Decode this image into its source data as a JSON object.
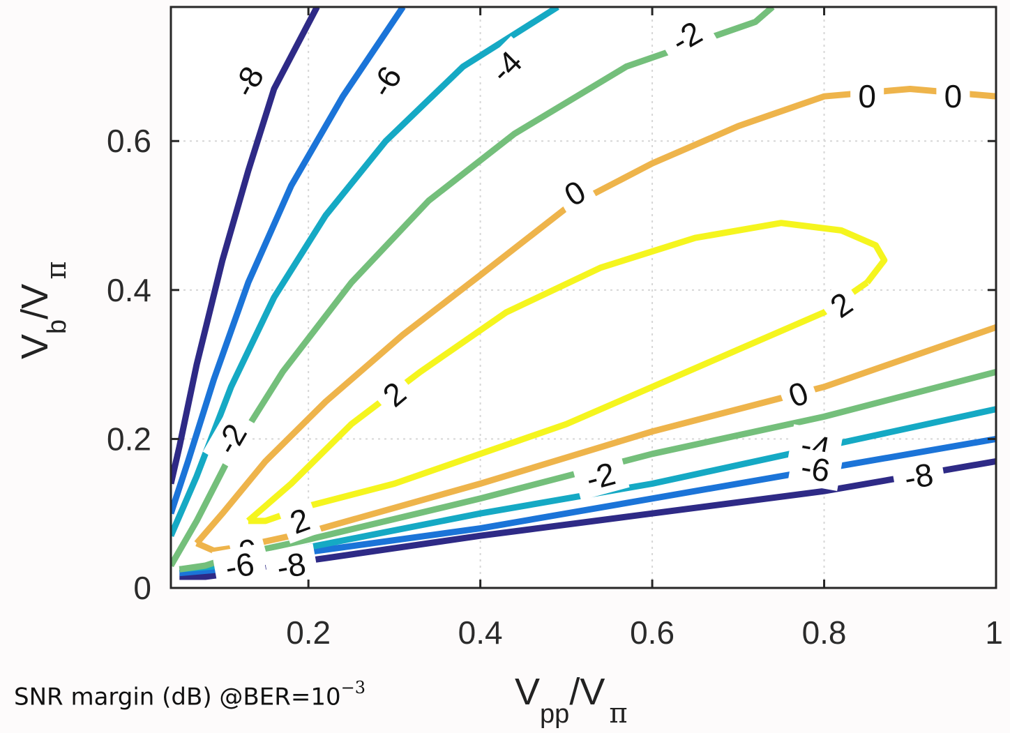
{
  "caption": {
    "prefix": "SNR margin (dB) @BER=10",
    "exponent": "−3"
  },
  "chart_data": {
    "type": "contour",
    "title": "",
    "xlabel": {
      "main": "V",
      "sub": "pp",
      "sep": "/V",
      "pi": "π"
    },
    "ylabel": {
      "main": "V",
      "sub": "b",
      "sep": "/V",
      "pi": "π"
    },
    "xlim": [
      0.04,
      1.0
    ],
    "ylim": [
      0.0,
      0.78
    ],
    "xticks": [
      0.2,
      0.4,
      0.6,
      0.8,
      1.0
    ],
    "xtick_labels": [
      "0.2",
      "0.4",
      "0.6",
      "0.8",
      "1"
    ],
    "yticks": [
      0.0,
      0.2,
      0.4,
      0.6
    ],
    "ytick_labels": [
      "0",
      "0.2",
      "0.4",
      "0.6"
    ],
    "grid": true,
    "colors": {
      "-8": "#2e2a86",
      "-6": "#1b74d8",
      "-4": "#15a9c4",
      "-2": "#74bf7b",
      "0": "#eeb44b",
      "2": "#f5f51e"
    },
    "contours": [
      {
        "level": -8,
        "segments": [
          [
            [
              0.04,
              0.14
            ],
            [
              0.05,
              0.19
            ],
            [
              0.07,
              0.3
            ],
            [
              0.1,
              0.44
            ],
            [
              0.13,
              0.56
            ],
            [
              0.16,
              0.67
            ],
            [
              0.21,
              0.78
            ]
          ],
          [
            [
              0.05,
              0.015
            ],
            [
              0.08,
              0.015
            ],
            [
              0.1,
              0.018
            ],
            [
              0.12,
              0.024
            ],
            [
              0.22,
              0.04
            ],
            [
              0.4,
              0.07
            ],
            [
              0.6,
              0.1
            ],
            [
              0.8,
              0.13
            ],
            [
              1.0,
              0.17
            ]
          ]
        ]
      },
      {
        "level": -6,
        "segments": [
          [
            [
              0.04,
              0.1
            ],
            [
              0.06,
              0.17
            ],
            [
              0.09,
              0.28
            ],
            [
              0.13,
              0.41
            ],
            [
              0.18,
              0.54
            ],
            [
              0.24,
              0.66
            ],
            [
              0.31,
              0.78
            ]
          ],
          [
            [
              0.05,
              0.02
            ],
            [
              0.1,
              0.025
            ],
            [
              0.18,
              0.045
            ],
            [
              0.4,
              0.08
            ],
            [
              0.6,
              0.12
            ],
            [
              0.8,
              0.16
            ],
            [
              1.0,
              0.2
            ]
          ]
        ]
      },
      {
        "level": -4,
        "segments": [
          [
            [
              0.04,
              0.07
            ],
            [
              0.07,
              0.15
            ],
            [
              0.11,
              0.27
            ],
            [
              0.16,
              0.39
            ],
            [
              0.22,
              0.5
            ],
            [
              0.29,
              0.6
            ],
            [
              0.38,
              0.7
            ],
            [
              0.49,
              0.78
            ]
          ],
          [
            [
              0.05,
              0.025
            ],
            [
              0.1,
              0.03
            ],
            [
              0.18,
              0.05
            ],
            [
              0.4,
              0.1
            ],
            [
              0.6,
              0.14
            ],
            [
              0.8,
              0.19
            ],
            [
              1.0,
              0.24
            ]
          ]
        ]
      },
      {
        "level": -2,
        "segments": [
          [
            [
              0.04,
              0.03
            ],
            [
              0.07,
              0.09
            ],
            [
              0.11,
              0.18
            ],
            [
              0.17,
              0.29
            ],
            [
              0.25,
              0.41
            ],
            [
              0.34,
              0.52
            ],
            [
              0.44,
              0.61
            ],
            [
              0.57,
              0.7
            ],
            [
              0.72,
              0.76
            ],
            [
              0.74,
              0.78
            ]
          ],
          [
            [
              0.05,
              0.025
            ],
            [
              0.08,
              0.03
            ],
            [
              0.12,
              0.045
            ],
            [
              0.2,
              0.065
            ],
            [
              0.4,
              0.12
            ],
            [
              0.6,
              0.18
            ],
            [
              0.8,
              0.23
            ],
            [
              1.0,
              0.29
            ]
          ]
        ]
      },
      {
        "level": 0,
        "segments": [
          [
            [
              0.07,
              0.06
            ],
            [
              0.1,
              0.1
            ],
            [
              0.15,
              0.17
            ],
            [
              0.22,
              0.25
            ],
            [
              0.31,
              0.34
            ],
            [
              0.4,
              0.42
            ],
            [
              0.5,
              0.51
            ],
            [
              0.6,
              0.57
            ],
            [
              0.7,
              0.62
            ],
            [
              0.8,
              0.66
            ],
            [
              0.9,
              0.67
            ],
            [
              1.0,
              0.66
            ]
          ],
          [
            [
              0.07,
              0.06
            ],
            [
              0.09,
              0.05
            ],
            [
              0.12,
              0.055
            ],
            [
              0.2,
              0.075
            ],
            [
              0.4,
              0.14
            ],
            [
              0.6,
              0.21
            ],
            [
              0.8,
              0.27
            ],
            [
              1.0,
              0.35
            ]
          ]
        ]
      },
      {
        "level": 2,
        "segments": [
          [
            [
              0.13,
              0.09
            ],
            [
              0.18,
              0.14
            ],
            [
              0.25,
              0.22
            ],
            [
              0.33,
              0.29
            ],
            [
              0.43,
              0.37
            ],
            [
              0.54,
              0.43
            ],
            [
              0.65,
              0.47
            ],
            [
              0.75,
              0.49
            ],
            [
              0.82,
              0.48
            ],
            [
              0.86,
              0.46
            ],
            [
              0.87,
              0.44
            ],
            [
              0.85,
              0.41
            ]
          ],
          [
            [
              0.85,
              0.41
            ],
            [
              0.8,
              0.37
            ],
            [
              0.7,
              0.32
            ],
            [
              0.6,
              0.27
            ],
            [
              0.5,
              0.22
            ],
            [
              0.4,
              0.18
            ],
            [
              0.3,
              0.14
            ],
            [
              0.2,
              0.11
            ],
            [
              0.15,
              0.09
            ],
            [
              0.13,
              0.09
            ]
          ]
        ]
      }
    ],
    "labels": [
      {
        "text": "-8",
        "x": 0.13,
        "y": 0.68,
        "angle": -62
      },
      {
        "text": "-6",
        "x": 0.29,
        "y": 0.68,
        "angle": -58
      },
      {
        "text": "-4",
        "x": 0.43,
        "y": 0.7,
        "angle": -45
      },
      {
        "text": "-2",
        "x": 0.64,
        "y": 0.74,
        "angle": -30
      },
      {
        "text": "0",
        "x": 0.85,
        "y": 0.66,
        "angle": 0
      },
      {
        "text": "0",
        "x": 0.95,
        "y": 0.66,
        "angle": 0
      },
      {
        "text": "0",
        "x": 0.51,
        "y": 0.53,
        "angle": -30
      },
      {
        "text": "2",
        "x": 0.82,
        "y": 0.38,
        "angle": -35
      },
      {
        "text": "2",
        "x": 0.3,
        "y": 0.26,
        "angle": -40
      },
      {
        "text": "-2",
        "x": 0.11,
        "y": 0.2,
        "angle": -60
      },
      {
        "text": "0",
        "x": 0.77,
        "y": 0.26,
        "angle": -20
      },
      {
        "text": "-4",
        "x": 0.79,
        "y": 0.19,
        "angle": 10
      },
      {
        "text": "-6",
        "x": 0.79,
        "y": 0.16,
        "angle": 10
      },
      {
        "text": "-8",
        "x": 0.91,
        "y": 0.15,
        "angle": -10
      },
      {
        "text": "-2",
        "x": 0.54,
        "y": 0.15,
        "angle": -15
      },
      {
        "text": "2",
        "x": 0.19,
        "y": 0.09,
        "angle": -20
      },
      {
        "text": "0",
        "x": 0.13,
        "y": 0.05,
        "angle": -15
      },
      {
        "text": "-6",
        "x": 0.12,
        "y": 0.03,
        "angle": -10
      },
      {
        "text": "-8",
        "x": 0.18,
        "y": 0.03,
        "angle": -10
      }
    ]
  }
}
